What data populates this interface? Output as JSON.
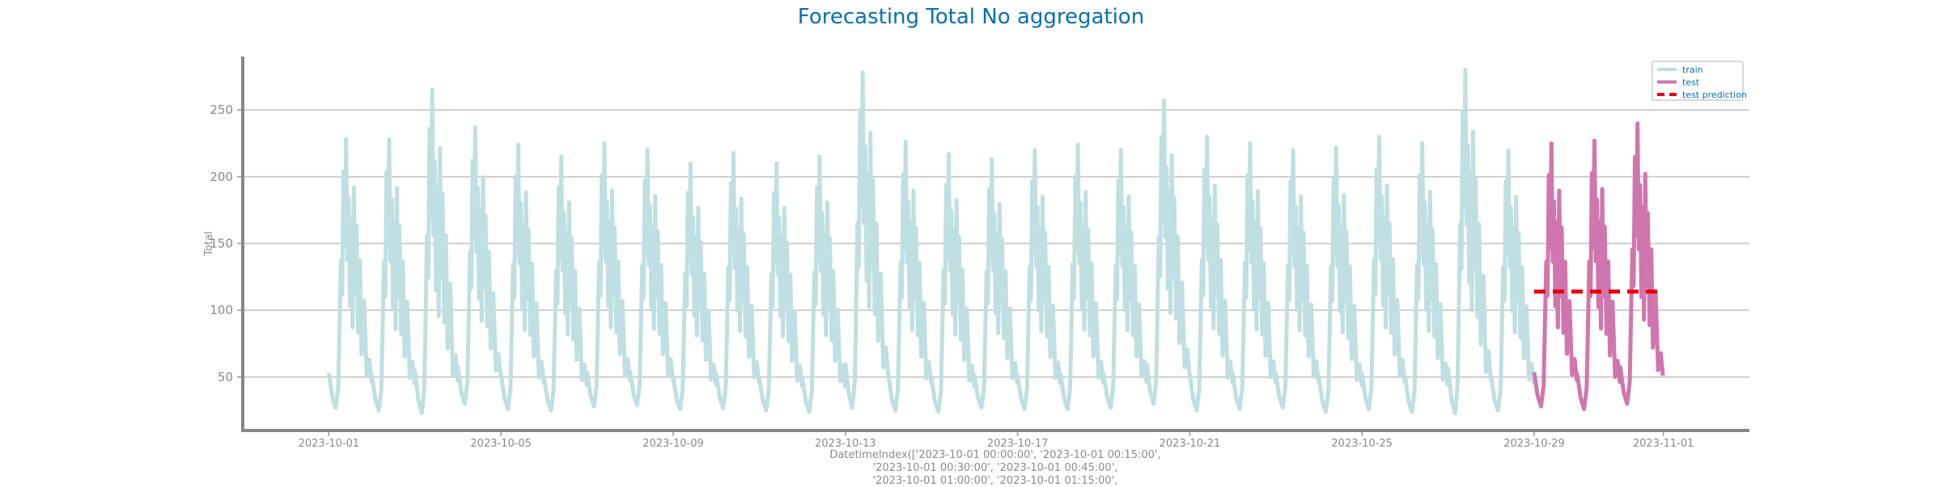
{
  "chart_data": {
    "type": "line",
    "title": "Forecasting Total No aggregation",
    "ylabel": "Total",
    "xlabel_lines": [
      "DatetimeIndex(['2023-10-01 00:00:00', '2023-10-01 00:15:00',",
      "'2023-10-01 00:30:00', '2023-10-01 00:45:00',",
      "'2023-10-01 01:00:00', '2023-10-01 01:15:00',"
    ],
    "x_range": [
      "2023-09-29",
      "2023-11-03"
    ],
    "ylim": [
      10,
      290
    ],
    "x_ticks": [
      "2023-10-01",
      "2023-10-05",
      "2023-10-09",
      "2023-10-13",
      "2023-10-17",
      "2023-10-21",
      "2023-10-25",
      "2023-10-29",
      "2023-11-01"
    ],
    "y_ticks": [
      50,
      100,
      150,
      200,
      250
    ],
    "grid": "horizontal",
    "legend_position": "top-right",
    "series": [
      {
        "name": "train",
        "color": "#bfdfe2",
        "style": "solid",
        "x": [
          "2023-10-01",
          "2023-10-02",
          "2023-10-03",
          "2023-10-04",
          "2023-10-05",
          "2023-10-06",
          "2023-10-07",
          "2023-10-08",
          "2023-10-09",
          "2023-10-10",
          "2023-10-11",
          "2023-10-12",
          "2023-10-13",
          "2023-10-14",
          "2023-10-15",
          "2023-10-16",
          "2023-10-17",
          "2023-10-18",
          "2023-10-19",
          "2023-10-20",
          "2023-10-21",
          "2023-10-22",
          "2023-10-23",
          "2023-10-24",
          "2023-10-25",
          "2023-10-26",
          "2023-10-27",
          "2023-10-28"
        ],
        "daily_min": [
          27,
          25,
          23,
          30,
          26,
          25,
          28,
          29,
          26,
          27,
          25,
          24,
          27,
          25,
          24,
          27,
          26,
          26,
          27,
          30,
          25,
          26,
          27,
          24,
          26,
          24,
          23,
          25
        ],
        "daily_max": [
          228,
          228,
          265,
          237,
          224,
          215,
          225,
          220,
          210,
          218,
          210,
          215,
          278,
          226,
          217,
          213,
          220,
          224,
          220,
          257,
          230,
          225,
          220,
          222,
          230,
          225,
          280,
          220
        ]
      },
      {
        "name": "test",
        "color": "#d076ae",
        "style": "solid",
        "x": [
          "2023-10-29",
          "2023-10-30",
          "2023-10-31"
        ],
        "daily_min": [
          28,
          26,
          30
        ],
        "daily_max": [
          225,
          227,
          240
        ]
      },
      {
        "name": "test prediction",
        "color": "#e8000b",
        "style": "dashed",
        "x": [
          "2023-10-29",
          "2023-11-01"
        ],
        "values": [
          114,
          114
        ]
      }
    ]
  }
}
